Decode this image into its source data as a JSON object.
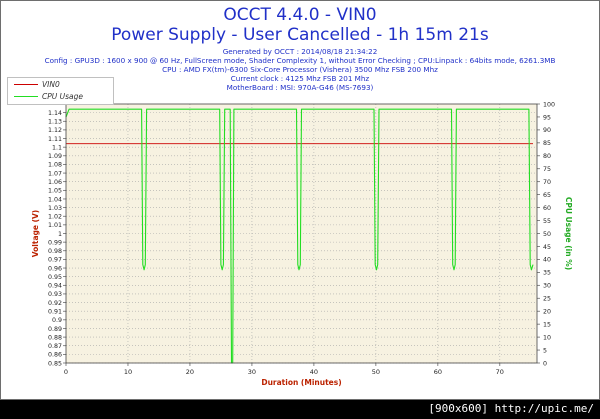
{
  "window": {
    "title": "OCCT 4.4.0 - VIN0",
    "subtitle": "Power Supply - User Cancelled - 1h 15m 21s"
  },
  "info_lines": [
    "Generated by OCCT : 2014/08/18 21:34:22",
    "Config : GPU3D : 1600 x 900 @ 60 Hz, FullScreen mode, Shader Complexity 1, without Error Checking ; CPU:Linpack : 64bits mode, 6261.3MB",
    "CPU : AMD FX(tm)-6300 Six-Core Processor (Vishera) 3500 Mhz FSB 200 Mhz",
    "Current clock : 4125 Mhz FSB 201 Mhz",
    "MotherBoard : MSI: 970A-G46 (MS-7693)"
  ],
  "legend": {
    "items": [
      {
        "label": "VIN0",
        "color": "#cc0000"
      },
      {
        "label": "CPU Usage",
        "color": "#22dd22"
      }
    ]
  },
  "footer": {
    "text": "[900x600] http://upic.me/"
  },
  "colors": {
    "plot_bg": "#f7f2e1",
    "grid": "#a8a8a8",
    "vin0": "#cc0000",
    "cpu": "#22dd22",
    "left_axis_title": "#bb2200",
    "right_axis_title": "#22aa22",
    "x_axis_title": "#bb2200"
  },
  "chart_data": {
    "type": "line",
    "title": "OCCT 4.4.0 - VIN0",
    "subtitle": "Power Supply - User Cancelled - 1h 15m 21s",
    "xlabel": "Duration (Minutes)",
    "ylabel": "Voltage (V)",
    "y2label": "CPU Usage (in %)",
    "xlim": [
      0,
      76
    ],
    "ylim": [
      0.85,
      1.15
    ],
    "y2lim": [
      0,
      100
    ],
    "x_ticks": [
      0,
      10,
      20,
      30,
      40,
      50,
      60,
      70
    ],
    "y_ticks": [
      0.85,
      0.86,
      0.87,
      0.88,
      0.89,
      0.9,
      0.91,
      0.92,
      0.93,
      0.94,
      0.95,
      0.96,
      0.97,
      0.98,
      0.99,
      1.0,
      1.01,
      1.02,
      1.03,
      1.04,
      1.05,
      1.06,
      1.07,
      1.08,
      1.09,
      1.1,
      1.11,
      1.12,
      1.13,
      1.14
    ],
    "y_tick_labels": [
      "0.85",
      "0.86",
      "0.87",
      "0.88",
      "0.89",
      "0.9",
      "0.91",
      "0.92",
      "0.93",
      "0.94",
      "0.95",
      "0.96",
      "0.97",
      "0.98",
      "0.99",
      "1",
      "1.01",
      "1.02",
      "1.03",
      "1.04",
      "1.05",
      "1.06",
      "1.07",
      "1.08",
      "1.09",
      "1.1",
      "1.11",
      "1.12",
      "1.13",
      "1.14"
    ],
    "y2_ticks": [
      0,
      5,
      10,
      15,
      20,
      25,
      30,
      35,
      40,
      45,
      50,
      55,
      60,
      65,
      70,
      75,
      80,
      85,
      90,
      95,
      100
    ],
    "grid": true,
    "legend_position": "top-left",
    "series": [
      {
        "name": "VIN0",
        "axis": "left",
        "color": "#cc0000",
        "x": [
          0,
          75.35
        ],
        "y": [
          1.104,
          1.104
        ]
      },
      {
        "name": "CPU Usage",
        "axis": "right",
        "color": "#22dd22",
        "x": [
          0,
          0.5,
          12.2,
          12.4,
          12.6,
          12.8,
          13.0,
          24.8,
          25.0,
          25.2,
          25.4,
          25.6,
          26.5,
          26.7,
          26.9,
          27.1,
          37.2,
          37.4,
          37.6,
          37.8,
          38.0,
          49.7,
          49.9,
          50.1,
          50.3,
          50.5,
          62.2,
          62.4,
          62.6,
          62.8,
          63.0,
          74.7,
          74.9,
          75.1,
          75.35
        ],
        "y": [
          95,
          98,
          98,
          38,
          36,
          38,
          98,
          98,
          38,
          36,
          38,
          98,
          98,
          0,
          0,
          98,
          98,
          38,
          36,
          38,
          98,
          98,
          38,
          36,
          38,
          98,
          98,
          38,
          36,
          38,
          98,
          98,
          38,
          36,
          38
        ]
      }
    ]
  }
}
